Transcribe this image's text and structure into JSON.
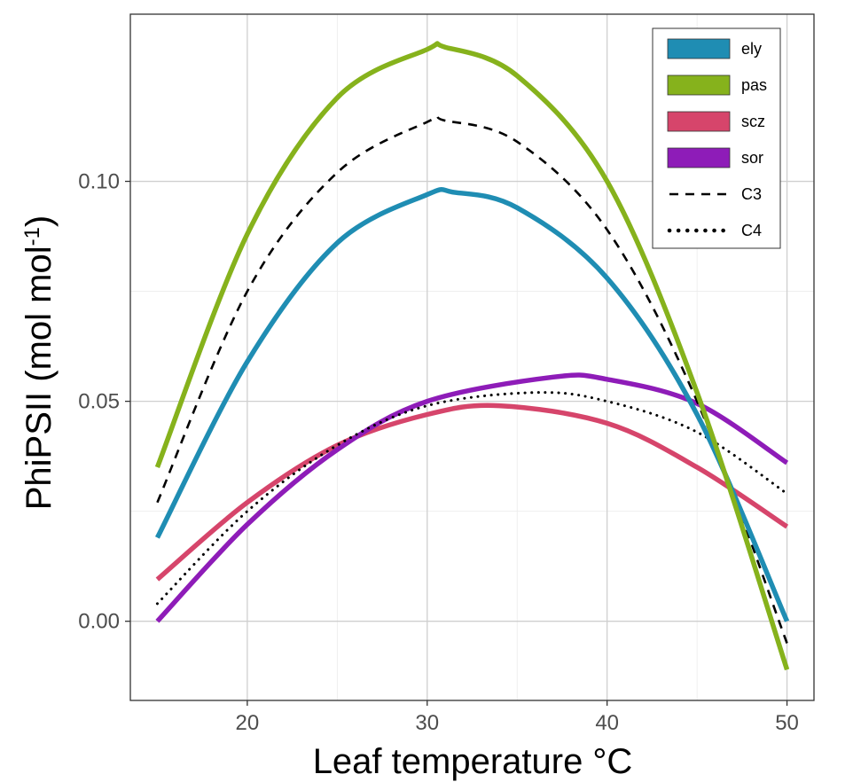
{
  "chart_data": {
    "type": "line",
    "xlabel": "Leaf temperature °C",
    "ylabel_main": "PhiPSII (mol mol",
    "ylabel_sup": "-1",
    "ylabel_close": ")",
    "xlim": [
      13.5,
      51.5
    ],
    "ylim": [
      -0.018,
      0.138
    ],
    "x_ticks": [
      20,
      30,
      40,
      50
    ],
    "x_tick_labels": [
      "20",
      "30",
      "40",
      "50"
    ],
    "y_ticks": [
      0.0,
      0.05,
      0.1
    ],
    "y_tick_labels": [
      "0.00",
      "0.05",
      "0.10"
    ],
    "grid": true,
    "legend_position": "top-right",
    "series": [
      {
        "name": "ely",
        "color": "#1f8db3",
        "style": "solid",
        "x": [
          15,
          20,
          25,
          30,
          31.5,
          35,
          40,
          45,
          50
        ],
        "y": [
          0.019,
          0.059,
          0.086,
          0.097,
          0.0975,
          0.094,
          0.078,
          0.047,
          0.0
        ]
      },
      {
        "name": "pas",
        "color": "#86b21c",
        "style": "solid",
        "x": [
          15,
          20,
          25,
          30,
          31,
          35,
          40,
          45,
          50
        ],
        "y": [
          0.035,
          0.088,
          0.119,
          0.13,
          0.1305,
          0.124,
          0.1,
          0.052,
          -0.011
        ]
      },
      {
        "name": "scz",
        "color": "#d6456b",
        "style": "solid",
        "x": [
          15,
          20,
          25,
          30,
          34,
          40,
          45,
          50
        ],
        "y": [
          0.0095,
          0.027,
          0.04,
          0.047,
          0.049,
          0.045,
          0.035,
          0.0215
        ]
      },
      {
        "name": "sor",
        "color": "#8e1cb8",
        "style": "solid",
        "x": [
          15,
          20,
          25,
          30,
          37,
          40,
          45,
          50
        ],
        "y": [
          0.0,
          0.022,
          0.039,
          0.05,
          0.0555,
          0.055,
          0.0495,
          0.036
        ]
      },
      {
        "name": "C3",
        "color": "#000000",
        "style": "dashed",
        "x": [
          15,
          20,
          25,
          30,
          31,
          35,
          40,
          45,
          50
        ],
        "y": [
          0.027,
          0.075,
          0.102,
          0.1135,
          0.1138,
          0.109,
          0.089,
          0.05,
          -0.005
        ]
      },
      {
        "name": "C4",
        "color": "#000000",
        "style": "dotted",
        "x": [
          15,
          20,
          25,
          30,
          36,
          40,
          45,
          50
        ],
        "y": [
          0.004,
          0.025,
          0.04,
          0.049,
          0.052,
          0.05,
          0.043,
          0.029
        ]
      }
    ]
  }
}
